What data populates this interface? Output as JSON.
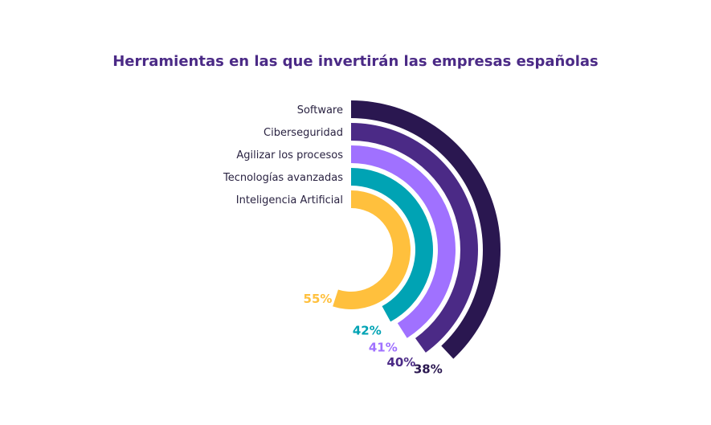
{
  "chart_data": {
    "type": "radial-bar",
    "title": "Herramientas en las que invertirán las empresas españolas",
    "categories": [
      "Software",
      "Ciberseguridad",
      "Agilizar los procesos",
      "Tecnologías avanzadas",
      "Inteligencia Artificial"
    ],
    "values": [
      38,
      40,
      41,
      42,
      55
    ],
    "value_labels": [
      "38%",
      "40%",
      "41%",
      "42%",
      "55%"
    ],
    "colors": [
      "#2a1750",
      "#4b2a86",
      "#a071ff",
      "#00a3b4",
      "#ffc03d"
    ],
    "unit": "%",
    "legend": "none",
    "grid": false
  }
}
